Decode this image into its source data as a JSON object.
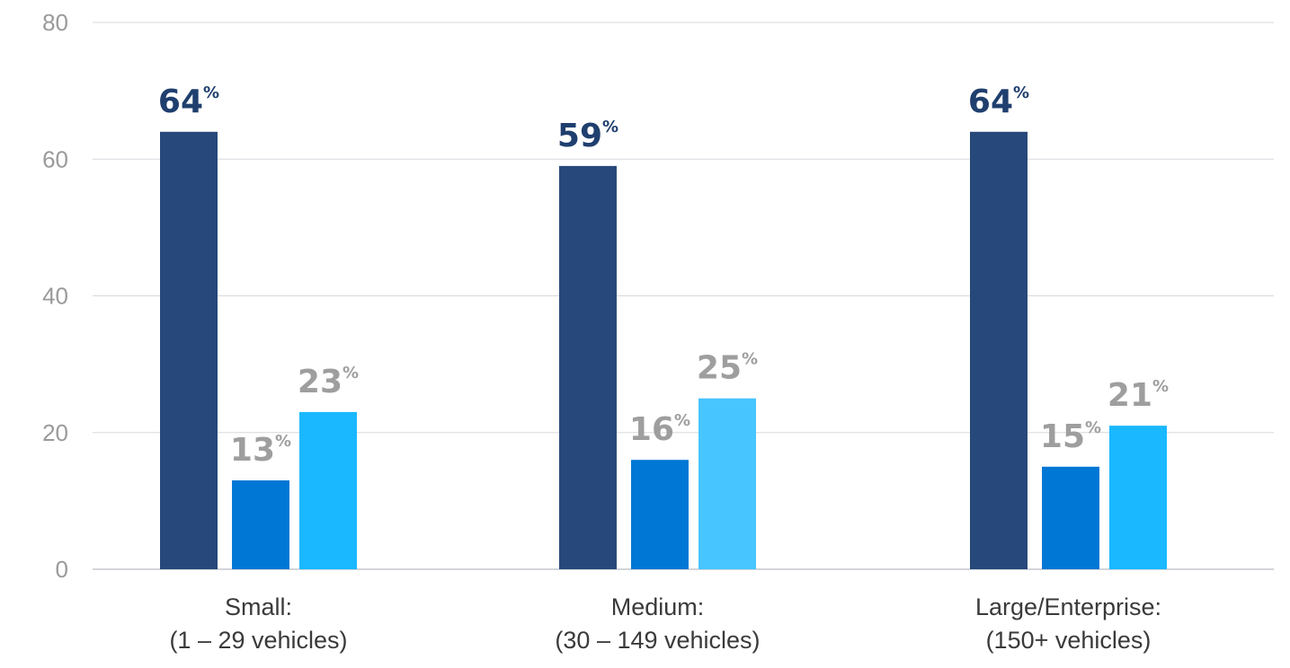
{
  "chart_data": {
    "type": "bar",
    "categories": [
      [
        "Small:",
        "(1 – 29 vehicles)"
      ],
      [
        "Medium:",
        "(30 – 149 vehicles)"
      ],
      [
        "Large/Enterprise:",
        "(150+ vehicles)"
      ]
    ],
    "series": [
      {
        "values": [
          64,
          59,
          64
        ],
        "color": "#27487a",
        "label_color": "#1f3f6e"
      },
      {
        "values": [
          13,
          16,
          15
        ],
        "color": "#0077d4",
        "label_color": "#9e9e9e"
      },
      {
        "values": [
          23,
          25,
          21
        ],
        "color": "#1ab8ff",
        "label_color": "#9e9e9e"
      }
    ],
    "series3_color_medium": "#47c5ff",
    "value_suffix": "%",
    "yticks": [
      0,
      20,
      40,
      60,
      80
    ],
    "ylim": [
      0,
      80
    ],
    "grid": true,
    "legend": "none"
  }
}
